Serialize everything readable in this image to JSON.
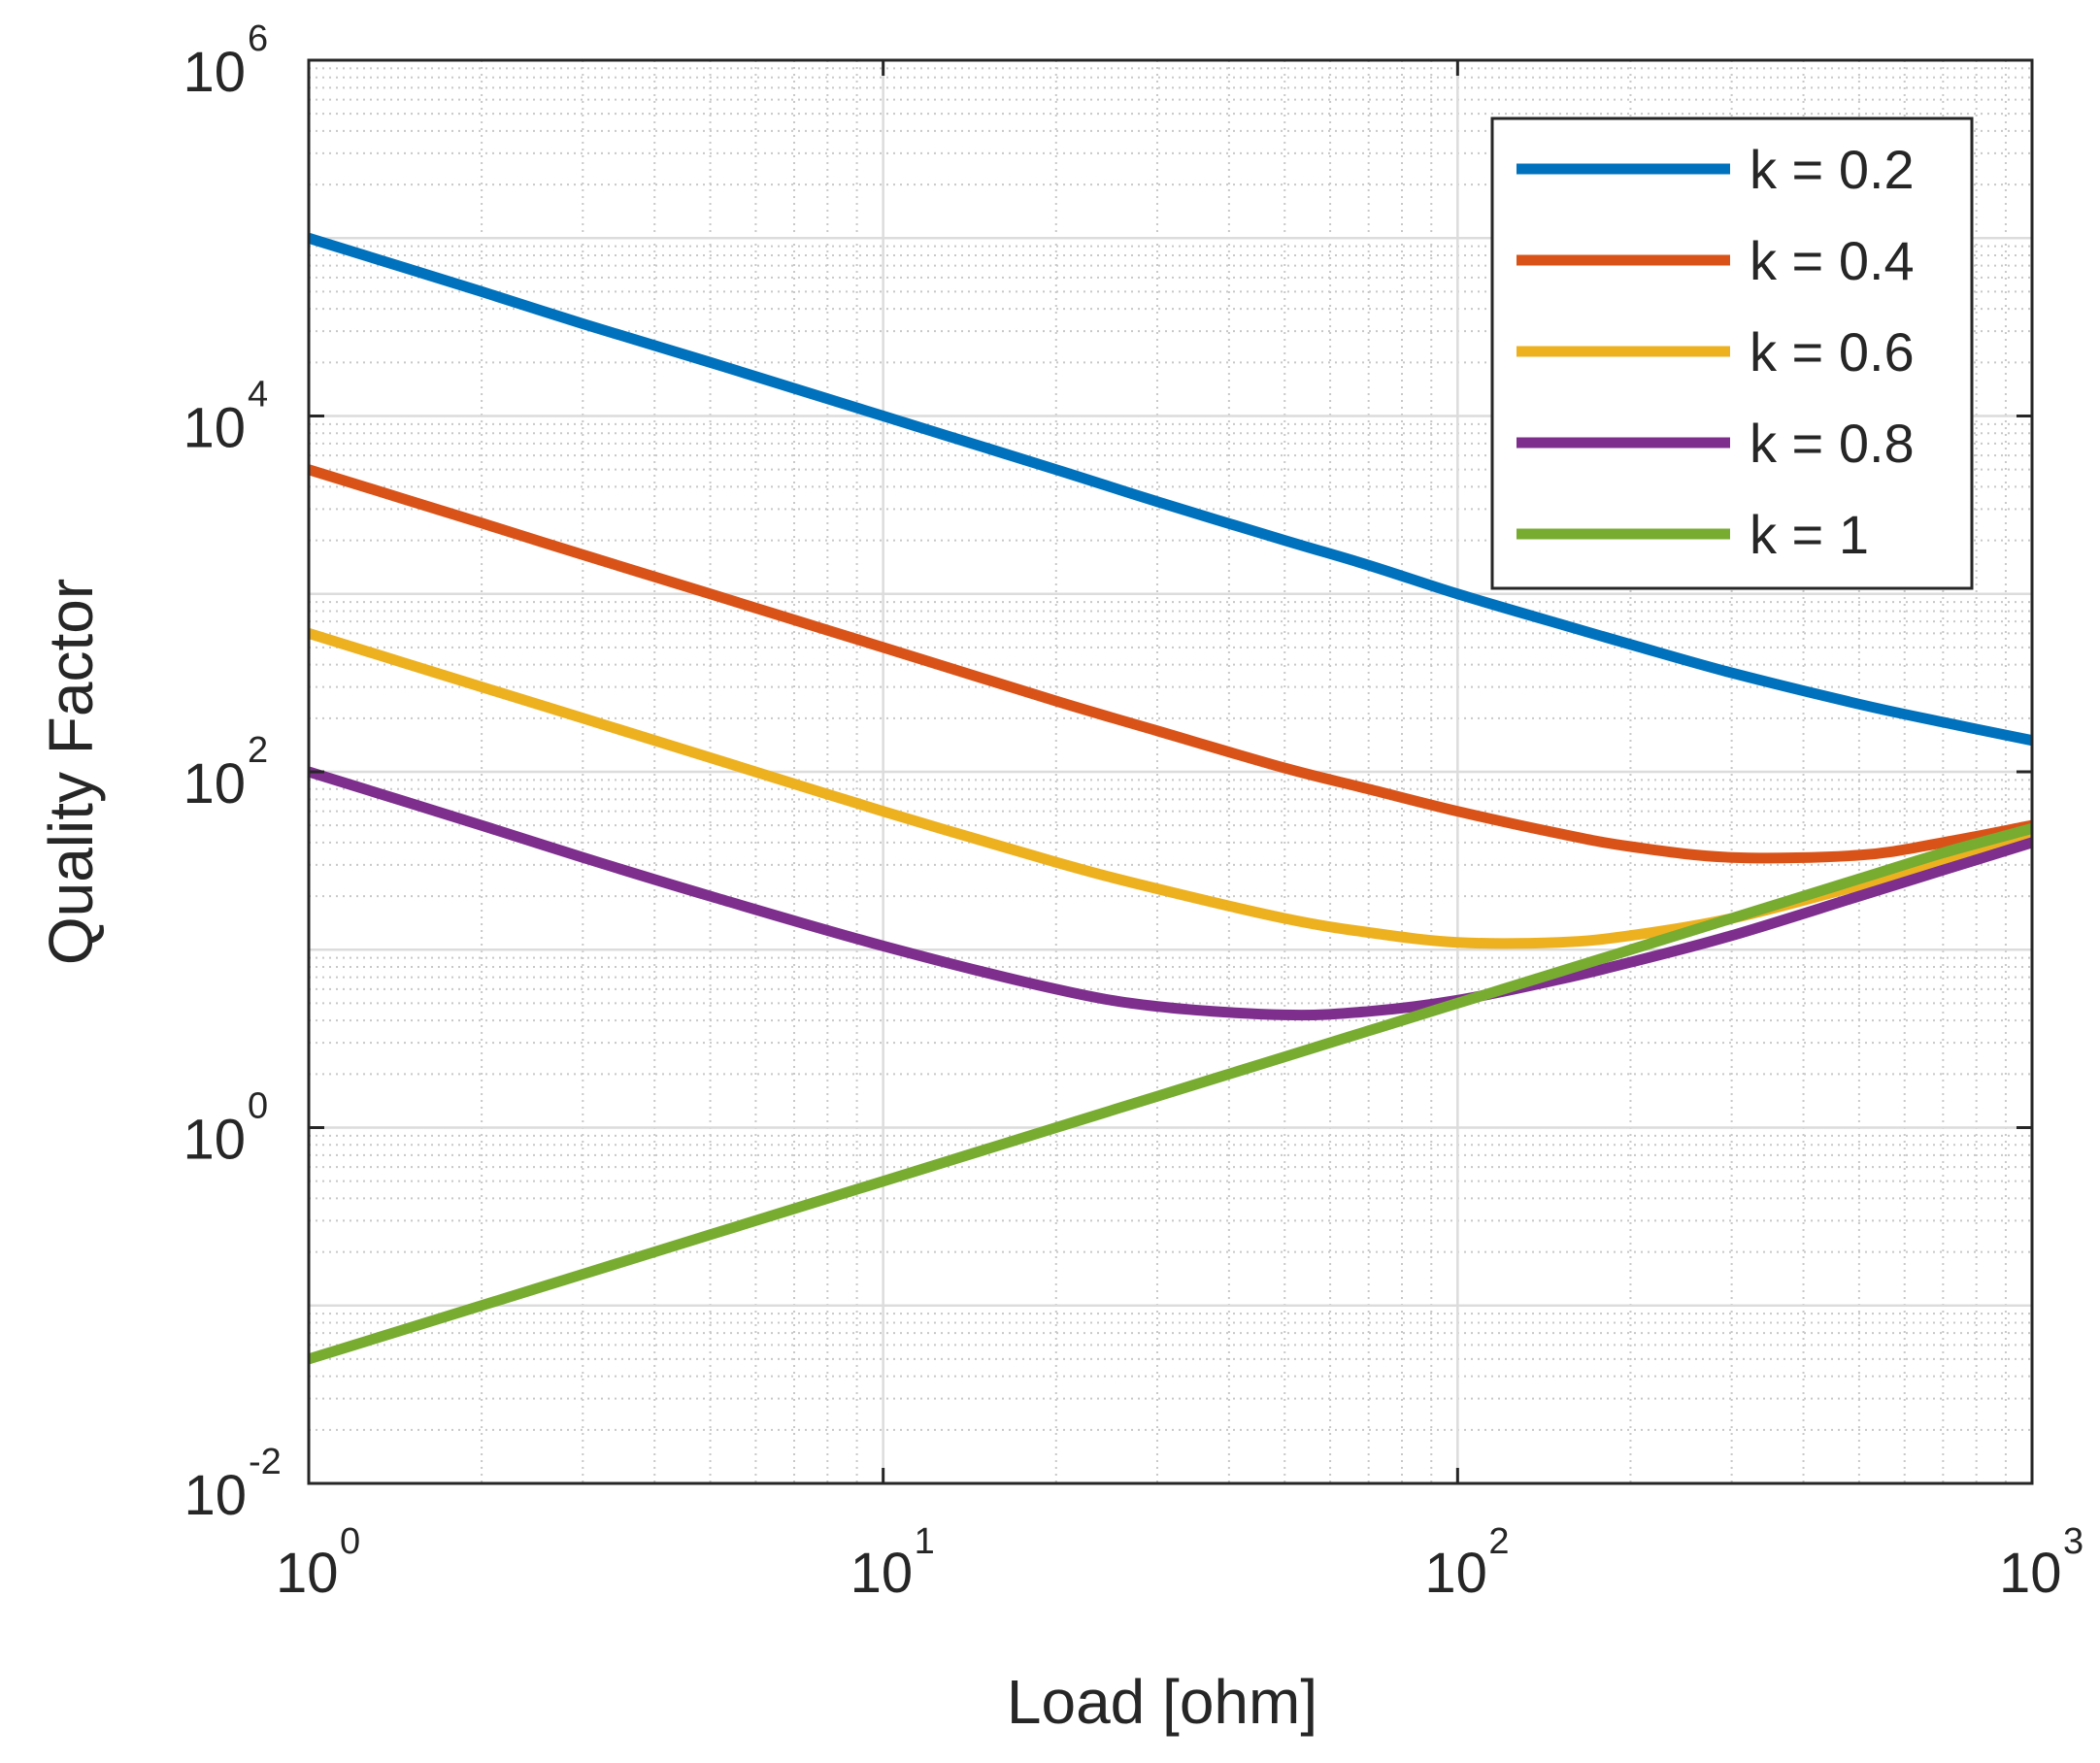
{
  "chart_data": {
    "type": "line",
    "title": "",
    "xlabel": "Load [ohm]",
    "ylabel": "Quality Factor",
    "xscale": "log",
    "yscale": "log",
    "xlim": [
      1,
      1000
    ],
    "ylim": [
      0.01,
      1000000
    ],
    "grid": "major and minor",
    "legend_position": "top-right",
    "x_ticks": [
      {
        "base": "10",
        "exp": "0",
        "value": 1
      },
      {
        "base": "10",
        "exp": "1",
        "value": 10
      },
      {
        "base": "10",
        "exp": "2",
        "value": 100
      },
      {
        "base": "10",
        "exp": "3",
        "value": 1000
      }
    ],
    "y_ticks": [
      {
        "base": "10",
        "exp": "-2",
        "value": 0.01
      },
      {
        "base": "10",
        "exp": "0",
        "value": 1
      },
      {
        "base": "10",
        "exp": "2",
        "value": 100
      },
      {
        "base": "10",
        "exp": "4",
        "value": 10000
      },
      {
        "base": "10",
        "exp": "6",
        "value": 1000000
      }
    ],
    "x": [
      1,
      2,
      3,
      5,
      10,
      20,
      30,
      50,
      70,
      100,
      150,
      200,
      300,
      500,
      700,
      1000
    ],
    "series": [
      {
        "name": "k = 0.2",
        "color": "#0072BD",
        "values": [
          100000,
          50000,
          33000,
          20000,
          10000,
          5000,
          3300,
          2000,
          1450,
          1000,
          680,
          520,
          360,
          240,
          190,
          150
        ]
      },
      {
        "name": "k = 0.4",
        "color": "#D95319",
        "values": [
          5000,
          2500,
          1660,
          1000,
          500,
          250,
          170,
          105,
          80,
          60,
          45,
          38,
          33,
          34,
          40,
          50
        ]
      },
      {
        "name": "k = 0.6",
        "color": "#EDB120",
        "values": [
          600,
          300,
          200,
          120,
          60,
          31,
          22,
          15,
          12.5,
          11,
          11,
          12,
          15,
          23,
          31,
          42
        ]
      },
      {
        "name": "k = 0.8",
        "color": "#7E2F8E",
        "values": [
          100,
          50,
          33,
          20,
          10.5,
          6,
          4.8,
          4.3,
          4.5,
          5.2,
          6.8,
          8.5,
          12,
          20,
          28,
          40
        ]
      },
      {
        "name": "k = 1",
        "color": "#77AC30",
        "values": [
          0.05,
          0.1,
          0.15,
          0.25,
          0.5,
          1,
          1.5,
          2.5,
          3.5,
          5,
          7.5,
          10,
          15,
          25,
          35,
          48
        ]
      }
    ]
  }
}
